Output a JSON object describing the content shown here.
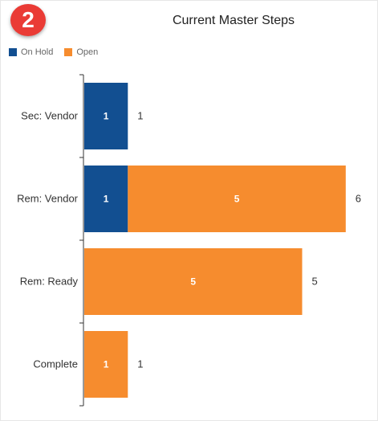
{
  "badge": {
    "number": "2",
    "color": "#ea3b35"
  },
  "chart_data": {
    "type": "bar",
    "orientation": "horizontal",
    "stacked": true,
    "title": "Current Master Steps",
    "categories": [
      "Sec: Vendor",
      "Rem: Vendor",
      "Rem: Ready",
      "Complete"
    ],
    "series": [
      {
        "name": "On Hold",
        "color": "#124f91",
        "values": [
          1,
          1,
          0,
          0
        ]
      },
      {
        "name": "Open",
        "color": "#f68c2e",
        "values": [
          0,
          5,
          5,
          1
        ]
      }
    ],
    "totals": [
      1,
      6,
      5,
      1
    ],
    "xlim": [
      0,
      6
    ],
    "legend_position": "top-left",
    "grid": false
  }
}
